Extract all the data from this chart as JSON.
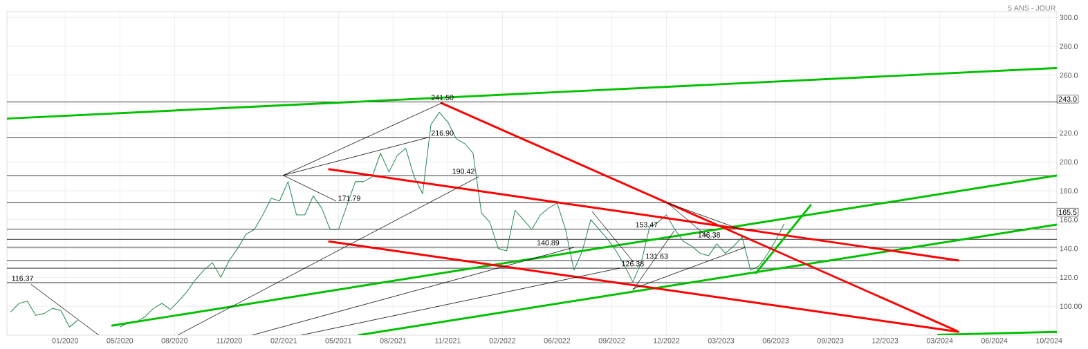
{
  "chart_data": {
    "type": "line",
    "title": "5 ANS - JOUR",
    "xlim": [
      "2019-10-22",
      "2024-08-04"
    ],
    "ylim": [
      80,
      304
    ],
    "xticks": [
      {
        "value": "2020-01-27",
        "label": "01/2020"
      },
      {
        "value": "2020-04-27",
        "label": "05/2020"
      },
      {
        "value": "2020-07-27",
        "label": "08/2020"
      },
      {
        "value": "2020-10-26",
        "label": "11/2020"
      },
      {
        "value": "2021-01-25",
        "label": "02/2021"
      },
      {
        "value": "2021-04-26",
        "label": "05/2021"
      },
      {
        "value": "2021-07-26",
        "label": "08/2021"
      },
      {
        "value": "2021-10-25",
        "label": "11/2021"
      },
      {
        "value": "2022-01-24",
        "label": "02/2022"
      },
      {
        "value": "2022-04-25",
        "label": "06/2022"
      },
      {
        "value": "2022-07-25",
        "label": "09/2022"
      },
      {
        "value": "2022-10-24",
        "label": "12/2022"
      },
      {
        "value": "2023-01-23",
        "label": "03/2023"
      },
      {
        "value": "2023-04-24",
        "label": "06/2023"
      },
      {
        "value": "2023-07-24",
        "label": "09/2023"
      },
      {
        "value": "2023-10-23",
        "label": "12/2023"
      },
      {
        "value": "2024-01-22",
        "label": "03/2024"
      },
      {
        "value": "2024-04-22",
        "label": "06/2024"
      },
      {
        "value": "2024-07-22",
        "label": "10/2024"
      }
    ],
    "yticks": [
      {
        "value": 100,
        "label": "100.00"
      },
      {
        "value": 120,
        "label": "120.0"
      },
      {
        "value": 140,
        "label": "140.0"
      },
      {
        "value": 160,
        "label": "160.0"
      },
      {
        "value": 180,
        "label": "180.0"
      },
      {
        "value": 200,
        "label": "200.0"
      },
      {
        "value": 220,
        "label": "220.0"
      },
      {
        "value": 240,
        "label": null
      },
      {
        "value": 260,
        "label": "260.0"
      },
      {
        "value": 280,
        "label": "280.0"
      },
      {
        "value": 300,
        "label": "300.0"
      }
    ],
    "grid": true,
    "series": [
      {
        "color": "#2e8b57",
        "x": [
          "2019-10-28",
          "2019-11-11",
          "2019-11-25",
          "2019-12-09",
          "2019-12-23",
          "2020-01-06",
          "2020-01-20",
          "2020-02-03",
          "2020-02-17",
          "2020-03-02",
          "2020-03-16",
          "2020-03-30",
          "2020-04-13",
          "2020-04-27",
          "2020-05-11",
          "2020-05-25",
          "2020-06-08",
          "2020-06-22",
          "2020-07-06",
          "2020-07-20",
          "2020-08-03",
          "2020-08-17",
          "2020-08-31",
          "2020-09-14",
          "2020-09-28",
          "2020-10-12",
          "2020-10-26",
          "2020-11-09",
          "2020-11-23",
          "2020-12-07",
          "2020-12-21",
          "2021-01-04",
          "2021-01-18",
          "2021-02-01",
          "2021-02-15",
          "2021-03-01",
          "2021-03-15",
          "2021-03-29",
          "2021-04-12",
          "2021-04-26",
          "2021-05-10",
          "2021-05-24",
          "2021-06-07",
          "2021-06-21",
          "2021-07-05",
          "2021-07-19",
          "2021-08-02",
          "2021-08-16",
          "2021-08-30",
          "2021-09-13",
          "2021-09-27",
          "2021-10-11",
          "2021-10-25",
          "2021-11-08",
          "2021-11-22",
          "2021-12-06",
          "2021-12-20",
          "2022-01-03",
          "2022-01-17",
          "2022-01-31",
          "2022-02-14",
          "2022-02-28",
          "2022-03-14",
          "2022-03-28",
          "2022-04-11",
          "2022-04-25",
          "2022-05-09",
          "2022-05-23",
          "2022-06-06",
          "2022-06-20",
          "2022-07-04",
          "2022-07-18",
          "2022-08-01",
          "2022-08-15",
          "2022-08-29",
          "2022-09-12",
          "2022-09-26",
          "2022-10-10",
          "2022-10-24",
          "2022-11-07",
          "2022-11-21",
          "2022-12-05",
          "2022-12-19",
          "2023-01-02",
          "2023-01-16",
          "2023-01-30",
          "2023-02-13",
          "2023-02-27",
          "2023-03-13",
          "2023-03-27",
          "2023-04-10",
          "2023-04-24",
          "2023-05-08"
        ],
        "values": [
          96,
          102,
          103.6,
          93.8,
          95,
          98.6,
          97,
          85.6,
          90.4,
          null,
          null,
          null,
          null,
          85.6,
          88.7,
          89.4,
          92.8,
          98.6,
          102,
          97.8,
          103.6,
          110.2,
          118.5,
          125,
          130.2,
          120.1,
          131.7,
          140,
          149.9,
          153.2,
          163.3,
          174.8,
          173,
          186.3,
          163.3,
          163.3,
          176.4,
          168,
          153.2,
          153.2,
          169.7,
          186.3,
          186.3,
          189.7,
          206,
          193,
          204.5,
          209.4,
          189.7,
          178,
          226,
          234.3,
          227.6,
          216,
          212.7,
          206.1,
          164.7,
          158.2,
          140,
          138.4,
          166.5,
          159.9,
          153.2,
          163.3,
          168,
          171.5,
          153.2,
          125,
          138.4,
          160,
          153.2,
          146.6,
          138.4,
          128.4,
          116.8,
          130.2,
          154.9,
          158.2,
          163.3,
          153.2,
          145,
          141.7,
          136.7,
          135,
          143.3,
          136.7,
          141.7,
          148,
          125,
          128,
          136,
          145.7,
          157
        ]
      },
      {
        "color": "#00c000",
        "x": [
          "2019-10-22",
          "2024-08-04"
        ],
        "values": [
          230,
          265
        ]
      },
      {
        "color": "#00c000",
        "x": [
          "2020-04-13",
          "2024-08-04"
        ],
        "values": [
          86.6,
          190.6
        ]
      },
      {
        "color": "#00c000",
        "x": [
          "2021-05-29",
          "2024-08-04"
        ],
        "values": [
          80,
          156.6
        ]
      },
      {
        "color": "#00c000",
        "x": [
          "2024-01-18",
          "2024-08-04"
        ],
        "values": [
          80.3,
          82.3
        ]
      },
      {
        "color": "#00c000",
        "x": [
          "2023-03-21",
          "2023-06-22"
        ],
        "values": [
          122.5,
          170.5
        ]
      },
      {
        "color": "#ff0000",
        "x": [
          "2021-10-13",
          "2024-02-21"
        ],
        "values": [
          241,
          82.7
        ]
      },
      {
        "color": "#ff0000",
        "x": [
          "2021-04-09",
          "2024-02-23"
        ],
        "values": [
          195,
          131.7
        ]
      },
      {
        "color": "#ff0000",
        "x": [
          "2021-04-09",
          "2024-02-23"
        ],
        "values": [
          145,
          82.3
        ]
      },
      {
        "color": "#000000",
        "x": [
          "2020-12-04",
          "2022-05-23"
        ],
        "values": [
          80.1,
          140.8
        ]
      },
      {
        "color": "#000000",
        "x": [
          "2022-08-29",
          "2022-11-06"
        ],
        "values": [
          111,
          152.3
        ]
      },
      {
        "color": "#000000",
        "x": [
          "2022-08-29",
          "2023-03-04"
        ],
        "values": [
          112,
          140.8
        ]
      },
      {
        "color": "#000000",
        "x": [
          "2019-12-01",
          "2020-03-23"
        ],
        "values": [
          115.3,
          80
        ]
      },
      {
        "color": "#000000",
        "x": [
          "2020-08-01",
          "2021-12-15"
        ],
        "values": [
          80,
          189.7
        ]
      },
      {
        "color": "#000000",
        "x": [
          "2021-01-24",
          "2021-10-16"
        ],
        "values": [
          190.7,
          241
        ]
      },
      {
        "color": "#000000",
        "x": [
          "2021-01-24",
          "2021-09-23"
        ],
        "values": [
          190.7,
          217
        ]
      },
      {
        "color": "#000000",
        "x": [
          "2021-01-24",
          "2021-04-22"
        ],
        "values": [
          190.7,
          172.9
        ]
      },
      {
        "color": "#000000",
        "x": [
          "2021-02-23",
          "2022-08-07"
        ],
        "values": [
          80,
          126.4
        ]
      },
      {
        "color": "#000000",
        "x": [
          "2022-06-22",
          "2022-08-30"
        ],
        "values": [
          165.7,
          130.7
        ]
      },
      {
        "color": "#000000",
        "x": [
          "2022-10-26",
          "2023-01-05"
        ],
        "values": [
          171.5,
          146.5
        ]
      },
      {
        "color": "#000000",
        "x": [
          "2022-10-26",
          "2023-02-25"
        ],
        "values": [
          171.5,
          153.2
        ]
      }
    ],
    "ref_lines": [
      {
        "axis": "y",
        "value": 241.5,
        "color": "#000000"
      },
      {
        "axis": "y",
        "value": 216.9,
        "color": "#000000"
      },
      {
        "axis": "y",
        "value": 190.42,
        "color": "#000000"
      },
      {
        "axis": "y",
        "value": 171.79,
        "color": "#000000"
      },
      {
        "axis": "y",
        "value": 153.47,
        "color": "#000000"
      },
      {
        "axis": "y",
        "value": 146.38,
        "color": "#000000"
      },
      {
        "axis": "y",
        "value": 140.89,
        "color": "#000000"
      },
      {
        "axis": "y",
        "value": 131.63,
        "color": "#000000"
      },
      {
        "axis": "y",
        "value": 126.38,
        "color": "#000000"
      },
      {
        "axis": "y",
        "value": 116.37,
        "color": "#000000"
      }
    ],
    "annotations": [
      {
        "text": "241.50",
        "x": "2021-10-16",
        "y": 241.5
      },
      {
        "text": "216.90",
        "x": "2021-10-16",
        "y": 216.9
      },
      {
        "text": "190.42",
        "x": "2021-11-20",
        "y": 190.42
      },
      {
        "text": "171.79",
        "x": "2021-05-14",
        "y": 171.79
      },
      {
        "text": "153.47",
        "x": "2022-09-21",
        "y": 153.47
      },
      {
        "text": "146.38",
        "x": "2023-01-03",
        "y": 146.38
      },
      {
        "text": "140.89",
        "x": "2022-04-10",
        "y": 140.89
      },
      {
        "text": "131.63",
        "x": "2022-10-08",
        "y": 131.63
      },
      {
        "text": "126.38",
        "x": "2022-08-29",
        "y": 126.38
      },
      {
        "text": "116.37",
        "x": "2019-11-17",
        "y": 116.37
      },
      "243.0",
      "165.5"
    ]
  }
}
